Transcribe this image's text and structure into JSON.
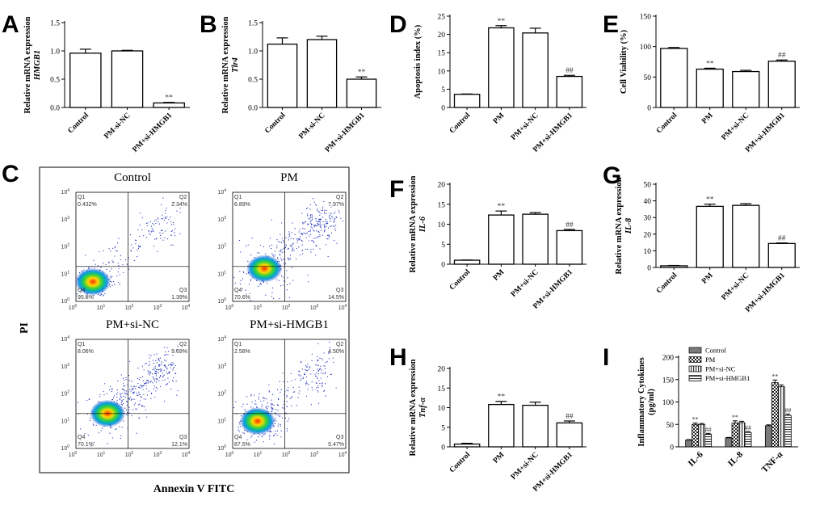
{
  "panels": {
    "A": {
      "label": "A"
    },
    "B": {
      "label": "B"
    },
    "C": {
      "label": "C"
    },
    "D": {
      "label": "D"
    },
    "E": {
      "label": "E"
    },
    "F": {
      "label": "F"
    },
    "G": {
      "label": "G"
    },
    "H": {
      "label": "H"
    },
    "I": {
      "label": "I"
    }
  },
  "flow": {
    "x_axis_label": "Annexin V FITC",
    "y_axis_label": "PI",
    "tick_labels": [
      "10⁰",
      "10¹",
      "10²",
      "10³",
      "10⁴"
    ],
    "tick_base": "10",
    "tick_exponents": [
      "0",
      "1",
      "2",
      "3",
      "4"
    ],
    "plots": [
      {
        "title": "Control",
        "q1_name": "Q1",
        "q1": "0.432%",
        "q2_name": "Q2",
        "q2": "2.34%",
        "q3_name": "Q3",
        "q3": "1.39%",
        "q4_name": "Q4",
        "q4": "95.8%"
      },
      {
        "title": "PM",
        "q1_name": "Q1",
        "q1": "6.89%",
        "q2_name": "Q2",
        "q2": "7.97%",
        "q3_name": "Q3",
        "q3": "14.5%",
        "q4_name": "Q4",
        "q4": "70.6%"
      },
      {
        "title": "PM+si-NC",
        "q1_name": "Q1",
        "q1": "8.06%",
        "q2_name": "Q2",
        "q2": "9.69%",
        "q3_name": "Q3",
        "q3": "12.1%",
        "q4_name": "Q4",
        "q4": "70.1%"
      },
      {
        "title": "PM+si-HMGB1",
        "q1_name": "Q1",
        "q1": "2.58%",
        "q2_name": "Q2",
        "q2": "4.50%",
        "q3_name": "Q3",
        "q3": "5.47%",
        "q4_name": "Q4",
        "q4": "87.5%"
      }
    ]
  },
  "chart_data": [
    {
      "panel": "A",
      "type": "bar",
      "ylabel": "Relative mRNA expression",
      "ylabel_gene": "HMGB1",
      "categories": [
        "Control",
        "PM-si-NC",
        "PM+si-HMGB1"
      ],
      "values": [
        0.96,
        1.0,
        0.08
      ],
      "errors": [
        0.07,
        0.01,
        0.01
      ],
      "annotations": [
        "",
        "",
        "**"
      ],
      "ylim": [
        0.0,
        1.5
      ],
      "yticks": [
        "0.0",
        "0.5",
        "1.0",
        "1.5"
      ]
    },
    {
      "panel": "B",
      "type": "bar",
      "ylabel": "Relative mRNA expression",
      "ylabel_gene": "Tlr4",
      "categories": [
        "Control",
        "PM-si-NC",
        "PM+si-HMGB1"
      ],
      "values": [
        1.12,
        1.2,
        0.5
      ],
      "errors": [
        0.11,
        0.06,
        0.04
      ],
      "annotations": [
        "",
        "",
        "**"
      ],
      "ylim": [
        0.0,
        1.5
      ],
      "yticks": [
        "0.0",
        "0.5",
        "1.0",
        "1.5"
      ]
    },
    {
      "panel": "D",
      "type": "bar",
      "ylabel": "Apoptosis index (%)",
      "ylabel_gene": "",
      "categories": [
        "Control",
        "PM",
        "PM+si-NC",
        "PM+si-HMGB1"
      ],
      "values": [
        3.6,
        21.8,
        20.4,
        8.5
      ],
      "errors": [
        0.1,
        0.6,
        1.3,
        0.3
      ],
      "annotations": [
        "",
        "**",
        "",
        "##"
      ],
      "ylim": [
        0,
        25
      ],
      "yticks": [
        "0",
        "5",
        "10",
        "15",
        "20",
        "25"
      ]
    },
    {
      "panel": "E",
      "type": "bar",
      "ylabel": "Cell Viability (%)",
      "ylabel_gene": "",
      "categories": [
        "Control",
        "PM",
        "PM+si-NC",
        "PM+si-HMGB1"
      ],
      "values": [
        97,
        63,
        59,
        76
      ],
      "errors": [
        1.5,
        1.5,
        2,
        2
      ],
      "annotations": [
        "",
        "**",
        "",
        "##"
      ],
      "ylim": [
        0,
        150
      ],
      "yticks": [
        "0",
        "50",
        "100",
        "150"
      ]
    },
    {
      "panel": "F",
      "type": "bar",
      "ylabel": "Relative mRNA expression",
      "ylabel_gene": "IL-6",
      "categories": [
        "Control",
        "PM",
        "PM+si-NC",
        "PM+si-HMGB1"
      ],
      "values": [
        1.0,
        12.3,
        12.5,
        8.4
      ],
      "errors": [
        0.05,
        1.0,
        0.4,
        0.3
      ],
      "annotations": [
        "",
        "**",
        "",
        "##"
      ],
      "ylim": [
        0,
        20
      ],
      "yticks": [
        "0",
        "5",
        "10",
        "15",
        "20"
      ]
    },
    {
      "panel": "G",
      "type": "bar",
      "ylabel": "Relative mRNA expression",
      "ylabel_gene": "IL-8",
      "categories": [
        "Control",
        "PM",
        "PM+si-NC",
        "PM+si-HMGB1"
      ],
      "values": [
        1.0,
        36.7,
        37.3,
        14.4
      ],
      "errors": [
        0.2,
        1.3,
        1.0,
        0.3
      ],
      "annotations": [
        "",
        "**",
        "",
        "##"
      ],
      "ylim": [
        0,
        50
      ],
      "yticks": [
        "0",
        "10",
        "20",
        "30",
        "40",
        "50"
      ]
    },
    {
      "panel": "H",
      "type": "bar",
      "ylabel": "Relative mRNA expression",
      "ylabel_gene": "Tnf-α",
      "categories": [
        "Control",
        "PM",
        "PM+si-NC",
        "PM+si-HMGB1"
      ],
      "values": [
        0.7,
        10.8,
        10.6,
        6.1
      ],
      "errors": [
        0.2,
        0.8,
        0.8,
        0.5
      ],
      "annotations": [
        "",
        "**",
        "",
        "##"
      ],
      "ylim": [
        0,
        20
      ],
      "yticks": [
        "0",
        "5",
        "10",
        "15",
        "20"
      ]
    },
    {
      "panel": "I",
      "type": "bar",
      "title": "",
      "ylabel": "Inflammatory Cytokines",
      "ylabel_unit": "(pg/ml)",
      "categories": [
        "IL-6",
        "IL-8",
        "TNF-α"
      ],
      "series": [
        {
          "name": "Control",
          "values": [
            15,
            20,
            47
          ],
          "errors": [
            1,
            1,
            2
          ],
          "annotations": [
            "",
            "",
            ""
          ]
        },
        {
          "name": "PM",
          "values": [
            50,
            53,
            143
          ],
          "errors": [
            3,
            5,
            6
          ],
          "annotations": [
            "**",
            "**",
            "**"
          ]
        },
        {
          "name": "PM+si-NC",
          "values": [
            50,
            54,
            134
          ],
          "errors": [
            2,
            3,
            4
          ],
          "annotations": [
            "",
            "",
            ""
          ]
        },
        {
          "name": "PM+si-HMGB1",
          "values": [
            28,
            32,
            70
          ],
          "errors": [
            2,
            2,
            3
          ],
          "annotations": [
            "##",
            "##",
            "##"
          ]
        }
      ],
      "ylim": [
        0,
        200
      ],
      "yticks": [
        "0",
        "50",
        "100",
        "150",
        "200"
      ]
    }
  ]
}
